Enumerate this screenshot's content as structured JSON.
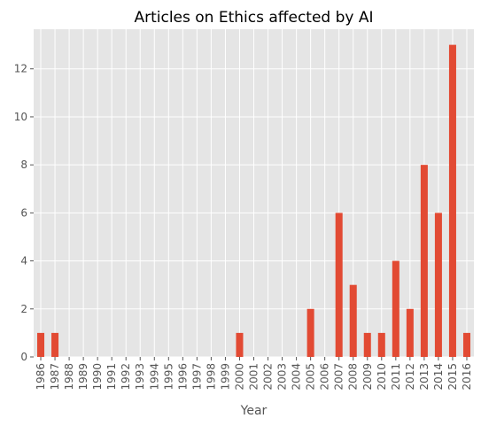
{
  "chart_data": {
    "type": "bar",
    "title": "Articles on Ethics affected by AI",
    "xlabel": "Year",
    "ylabel": "",
    "categories": [
      "1986",
      "1987",
      "1988",
      "1989",
      "1990",
      "1991",
      "1992",
      "1993",
      "1994",
      "1995",
      "1996",
      "1997",
      "1998",
      "1999",
      "2000",
      "2001",
      "2002",
      "2003",
      "2004",
      "2005",
      "2006",
      "2007",
      "2008",
      "2009",
      "2010",
      "2011",
      "2012",
      "2013",
      "2014",
      "2015",
      "2016"
    ],
    "values": [
      1,
      1,
      0,
      0,
      0,
      0,
      0,
      0,
      0,
      0,
      0,
      0,
      0,
      0,
      1,
      0,
      0,
      0,
      0,
      2,
      0,
      6,
      3,
      1,
      1,
      4,
      2,
      8,
      6,
      13,
      1
    ],
    "ylim": [
      0,
      13.65
    ],
    "yticks": [
      0,
      2,
      4,
      6,
      8,
      10,
      12
    ],
    "grid": true,
    "legend": "none",
    "colors": {
      "bar": "#E24A33",
      "background": "#E5E5E5",
      "grid": "#FFFFFF"
    }
  }
}
